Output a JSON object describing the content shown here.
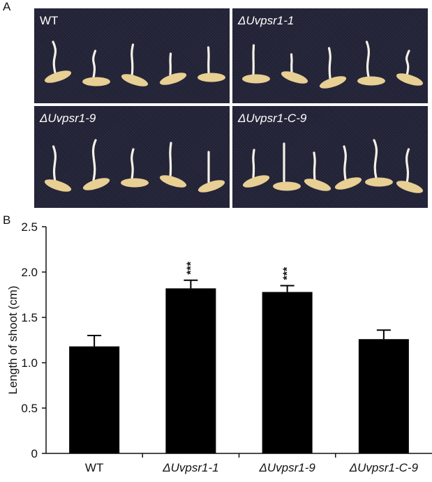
{
  "panel_a": {
    "letter": "A",
    "photos": [
      {
        "label": "WT",
        "seedlings": 5
      },
      {
        "label": "ΔUvpsr1-1",
        "seedlings": 5
      },
      {
        "label": "ΔUvpsr1-9",
        "seedlings": 5
      },
      {
        "label": "ΔUvpsr1-C-9",
        "seedlings": 6
      }
    ]
  },
  "panel_b": {
    "letter": "B"
  },
  "chart_data": {
    "type": "bar",
    "categories": [
      "WT",
      "ΔUvpsr1-1",
      "ΔUvpsr1-9",
      "ΔUvpsr1-C-9"
    ],
    "values": [
      1.18,
      1.82,
      1.78,
      1.26
    ],
    "errors": [
      0.12,
      0.09,
      0.07,
      0.1
    ],
    "significance": [
      "",
      "***",
      "***",
      ""
    ],
    "ylabel": "Length of shoot (cm)",
    "xlabel": "",
    "ylim": [
      0,
      2.5
    ],
    "yticks": [
      "0",
      "0.5",
      "1.0",
      "1.5",
      "2.0",
      "2.5"
    ],
    "bar_color": "#000000",
    "grid": false
  },
  "colors": {
    "photo_bg": "#24243a",
    "seed": "#e8cf93",
    "shoot": "#f4f1e6"
  }
}
